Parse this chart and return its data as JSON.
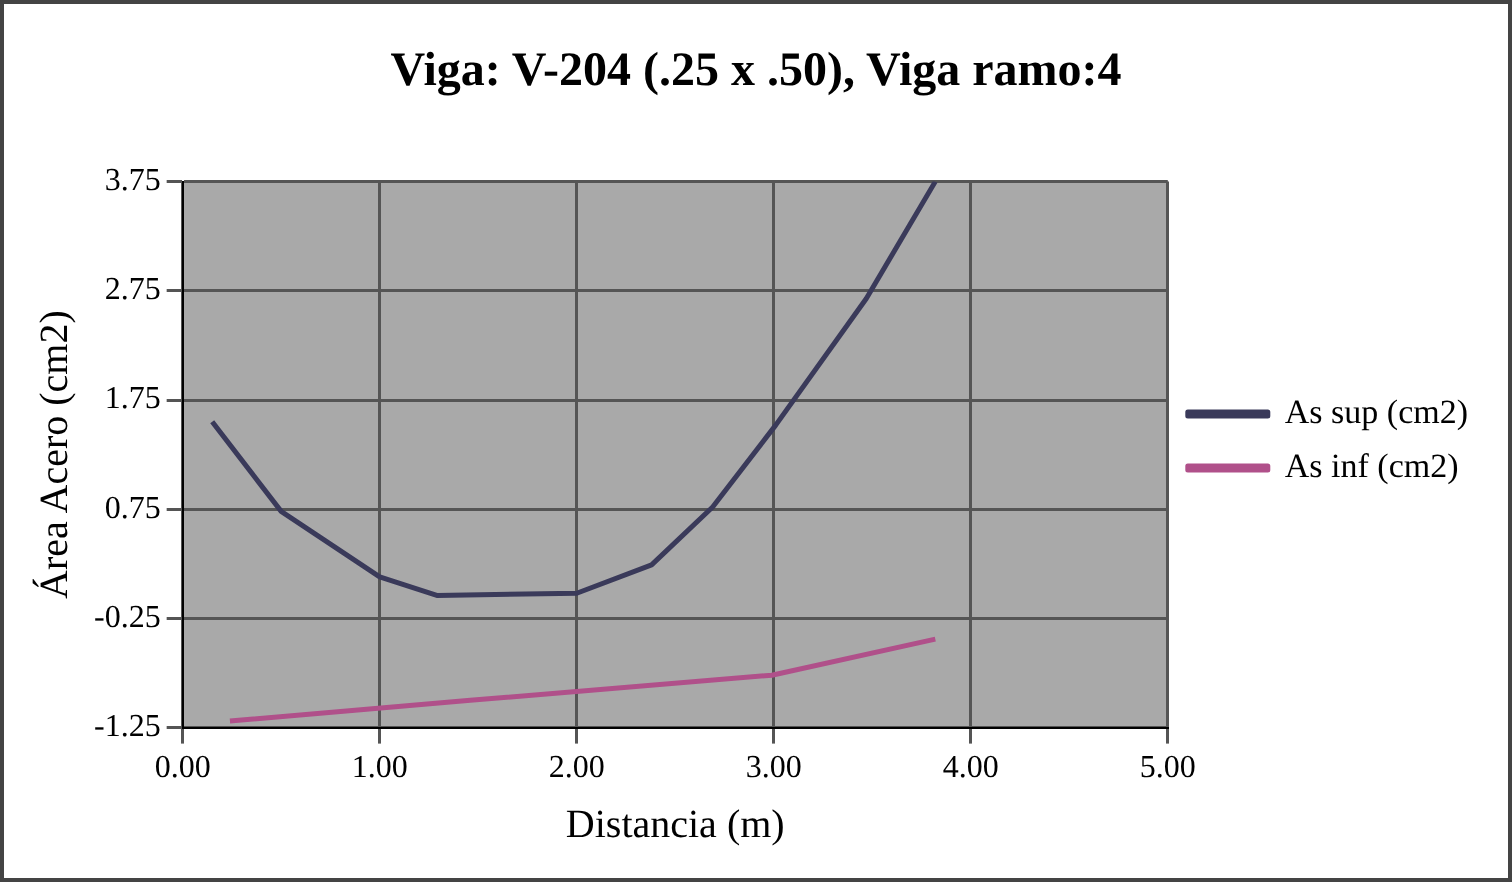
{
  "chart_data": {
    "type": "line",
    "title": "Viga: V-204 (.25 x .50), Viga ramo:4",
    "xlabel": "Distancia (m)",
    "ylabel": "Área Acero (cm2)",
    "xlim": [
      0,
      5
    ],
    "xticks": [
      {
        "value": 0,
        "label": "0.00"
      },
      {
        "value": 1,
        "label": "1.00"
      },
      {
        "value": 2,
        "label": "2.00"
      },
      {
        "value": 3,
        "label": "3.00"
      },
      {
        "value": 4,
        "label": "4.00"
      },
      {
        "value": 5,
        "label": "5.00"
      }
    ],
    "ylim": [
      -1.25,
      3.75
    ],
    "yticks": [
      -1.25,
      -0.25,
      0.75,
      1.75,
      2.75,
      3.75
    ],
    "grid": true,
    "legend": "right",
    "marker": "none",
    "line_style": "solid",
    "series": [
      {
        "name": "As sup (cm2)",
        "color": "#3a3a5a",
        "x": [
          0.15,
          0.5,
          1.0,
          1.29,
          2.0,
          2.38,
          2.69,
          3.01,
          3.47,
          3.82
        ],
        "values": [
          1.55,
          0.73,
          0.13,
          -0.04,
          -0.02,
          0.24,
          0.77,
          1.52,
          2.68,
          3.75
        ]
      },
      {
        "name": "As inf (cm2)",
        "color": "#b0508a",
        "x": [
          0.24,
          1.46,
          2.99,
          3.82
        ],
        "values": [
          -1.19,
          -1.0,
          -0.77,
          -0.44
        ]
      }
    ]
  }
}
